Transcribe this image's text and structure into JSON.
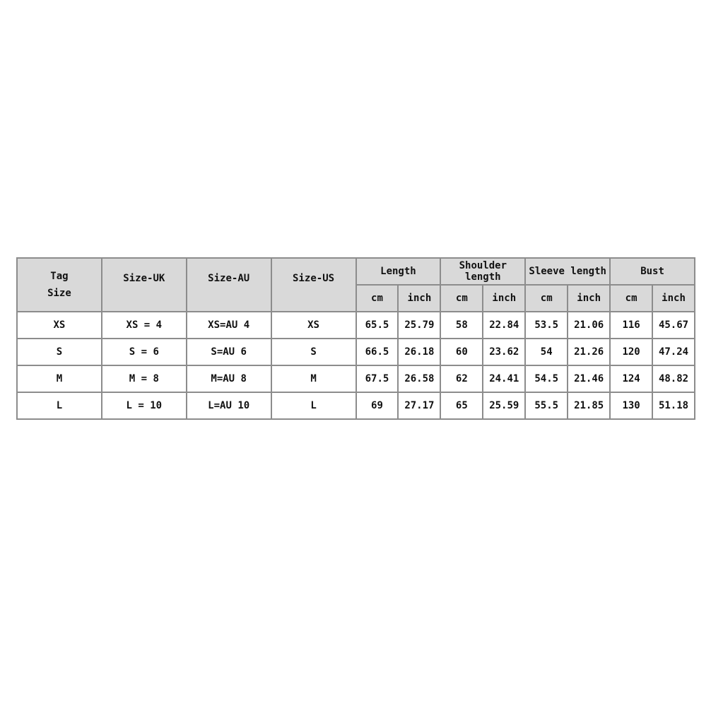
{
  "header": {
    "tag_size": [
      "Tag",
      "Size"
    ],
    "size_uk": "Size-UK",
    "size_au": "Size-AU",
    "size_us": "Size-US",
    "groups": [
      "Length",
      "Shoulder length",
      "Sleeve length",
      "Bust"
    ],
    "units": [
      "cm",
      "inch",
      "cm",
      "inch",
      "cm",
      "inch",
      "cm",
      "inch"
    ]
  },
  "header_bg": "#d9d9d9",
  "rows": [
    [
      "XS",
      "XS = 4",
      "XS=AU 4",
      "XS",
      "65.5",
      "25.79",
      "58",
      "22.84",
      "53.5",
      "21.06",
      "116",
      "45.67"
    ],
    [
      "S",
      "S = 6",
      "S=AU 6",
      "S",
      "66.5",
      "26.18",
      "60",
      "23.62",
      "54",
      "21.26",
      "120",
      "47.24"
    ],
    [
      "M",
      "M = 8",
      "M=AU 8",
      "M",
      "67.5",
      "26.58",
      "62",
      "24.41",
      "54.5",
      "21.46",
      "124",
      "48.82"
    ],
    [
      "L",
      "L = 10",
      "L=AU 10",
      "L",
      "69",
      "27.17",
      "65",
      "25.59",
      "55.5",
      "21.85",
      "130",
      "51.18"
    ]
  ]
}
